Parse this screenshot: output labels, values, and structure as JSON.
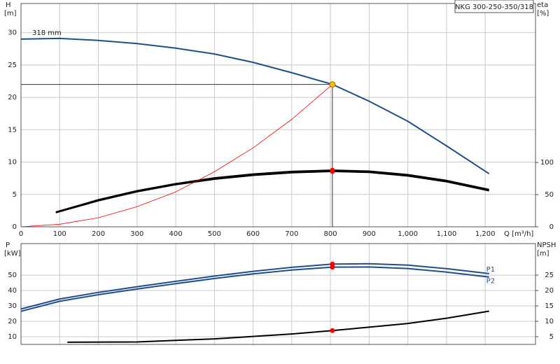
{
  "chart_data": [
    {
      "type": "line",
      "title": "NKG 300-250-350/318",
      "x_label": "Q [m³/h]",
      "y_label": "H",
      "y_unit": "[m]",
      "y2_label": "eta",
      "y2_unit": "[%]",
      "xlim": [
        0,
        1330
      ],
      "xticks": [
        0,
        100,
        200,
        300,
        400,
        500,
        600,
        700,
        800,
        900,
        {
          "value": 1000,
          "label": "1,000"
        },
        {
          "value": 1100,
          "label": "1,100"
        },
        {
          "value": 1200,
          "label": "1,200"
        }
      ],
      "ylim": [
        0,
        34.5
      ],
      "yticks": [
        0,
        5,
        10,
        15,
        20,
        25,
        30
      ],
      "y2lim": [
        0,
        347
      ],
      "y2ticks": [
        0,
        50,
        100
      ],
      "grid": true,
      "series": [
        {
          "name": "318 mm",
          "name_position": "start",
          "color": "#1f4e8c",
          "x": [
            0,
            100,
            200,
            300,
            400,
            500,
            600,
            700,
            805,
            900,
            1000,
            1100,
            1210
          ],
          "values": [
            29,
            29.1,
            28.8,
            28.3,
            27.6,
            26.7,
            25.4,
            23.8,
            22,
            19.4,
            16.3,
            12.5,
            8.2
          ]
        },
        {
          "color": "#000000",
          "axis": "y2",
          "x": [
            90,
            200,
            300,
            400,
            500,
            600,
            700,
            805,
            900,
            1000,
            1100,
            1210
          ],
          "values": [
            23,
            42,
            56,
            67,
            76,
            82,
            86,
            88,
            86.5,
            81,
            72,
            58
          ]
        },
        {
          "color": "#000000",
          "axis": "y2",
          "x": [
            90,
            200,
            300,
            400,
            500,
            600,
            700,
            805,
            900,
            1000,
            1100,
            1210
          ],
          "values": [
            22,
            40.5,
            54.5,
            65.5,
            74,
            80,
            84,
            86,
            84.5,
            79,
            70,
            56
          ]
        },
        {
          "color": "#ff0000",
          "x": [
            0,
            100,
            200,
            300,
            400,
            500,
            600,
            700,
            805
          ],
          "values": [
            0,
            0.4,
            1.4,
            3.1,
            5.4,
            8.5,
            12.2,
            16.6,
            22
          ]
        },
        {
          "style": "points",
          "color": "#ff0000",
          "axis": "y2",
          "x": [
            805,
            805
          ],
          "values": [
            88,
            86
          ]
        }
      ],
      "operating_point": {
        "x": 805,
        "y": 22,
        "color": "#f5c000"
      }
    },
    {
      "type": "line",
      "y_label": "P",
      "y_unit": "[kW]",
      "y2_label": "NPSH",
      "y2_unit": "[m]",
      "xlim": [
        0,
        1330
      ],
      "ylim": [
        5,
        70.5
      ],
      "yticks": [
        10,
        20,
        30,
        40,
        50
      ],
      "y2lim": [
        2.5,
        35.25
      ],
      "y2ticks": [
        5,
        10,
        15,
        20,
        25
      ],
      "grid": true,
      "series": [
        {
          "name": "P1",
          "name_position": "end",
          "color": "#1f4e8c",
          "x": [
            0,
            100,
            200,
            300,
            400,
            500,
            600,
            700,
            805,
            900,
            1000,
            1100,
            1210
          ],
          "values": [
            28,
            34.5,
            38.8,
            42.5,
            46,
            49.4,
            52.5,
            55.1,
            57.2,
            57.4,
            56.5,
            54.2,
            51
          ]
        },
        {
          "name": "P2",
          "name_position": "end",
          "color": "#1f4e8c",
          "x": [
            0,
            100,
            200,
            300,
            400,
            500,
            600,
            700,
            805,
            900,
            1000,
            1100,
            1210
          ],
          "values": [
            26.5,
            33,
            37.3,
            41,
            44.5,
            47.8,
            50.8,
            53.3,
            55.2,
            55.3,
            54.3,
            52,
            48.8
          ]
        },
        {
          "color": "#000000",
          "axis": "y2",
          "x": [
            120,
            300,
            400,
            500,
            600,
            700,
            805,
            900,
            1000,
            1100,
            1210
          ],
          "values": [
            3.2,
            3.3,
            3.8,
            4.3,
            5.1,
            5.9,
            7,
            8.1,
            9.3,
            11,
            13.3
          ]
        },
        {
          "style": "points",
          "color": "#ff0000",
          "x": [
            805,
            805
          ],
          "values": [
            57.2,
            55.2
          ]
        },
        {
          "style": "points",
          "color": "#ff0000",
          "axis": "y2",
          "x": [
            805
          ],
          "values": [
            7
          ]
        }
      ]
    }
  ]
}
